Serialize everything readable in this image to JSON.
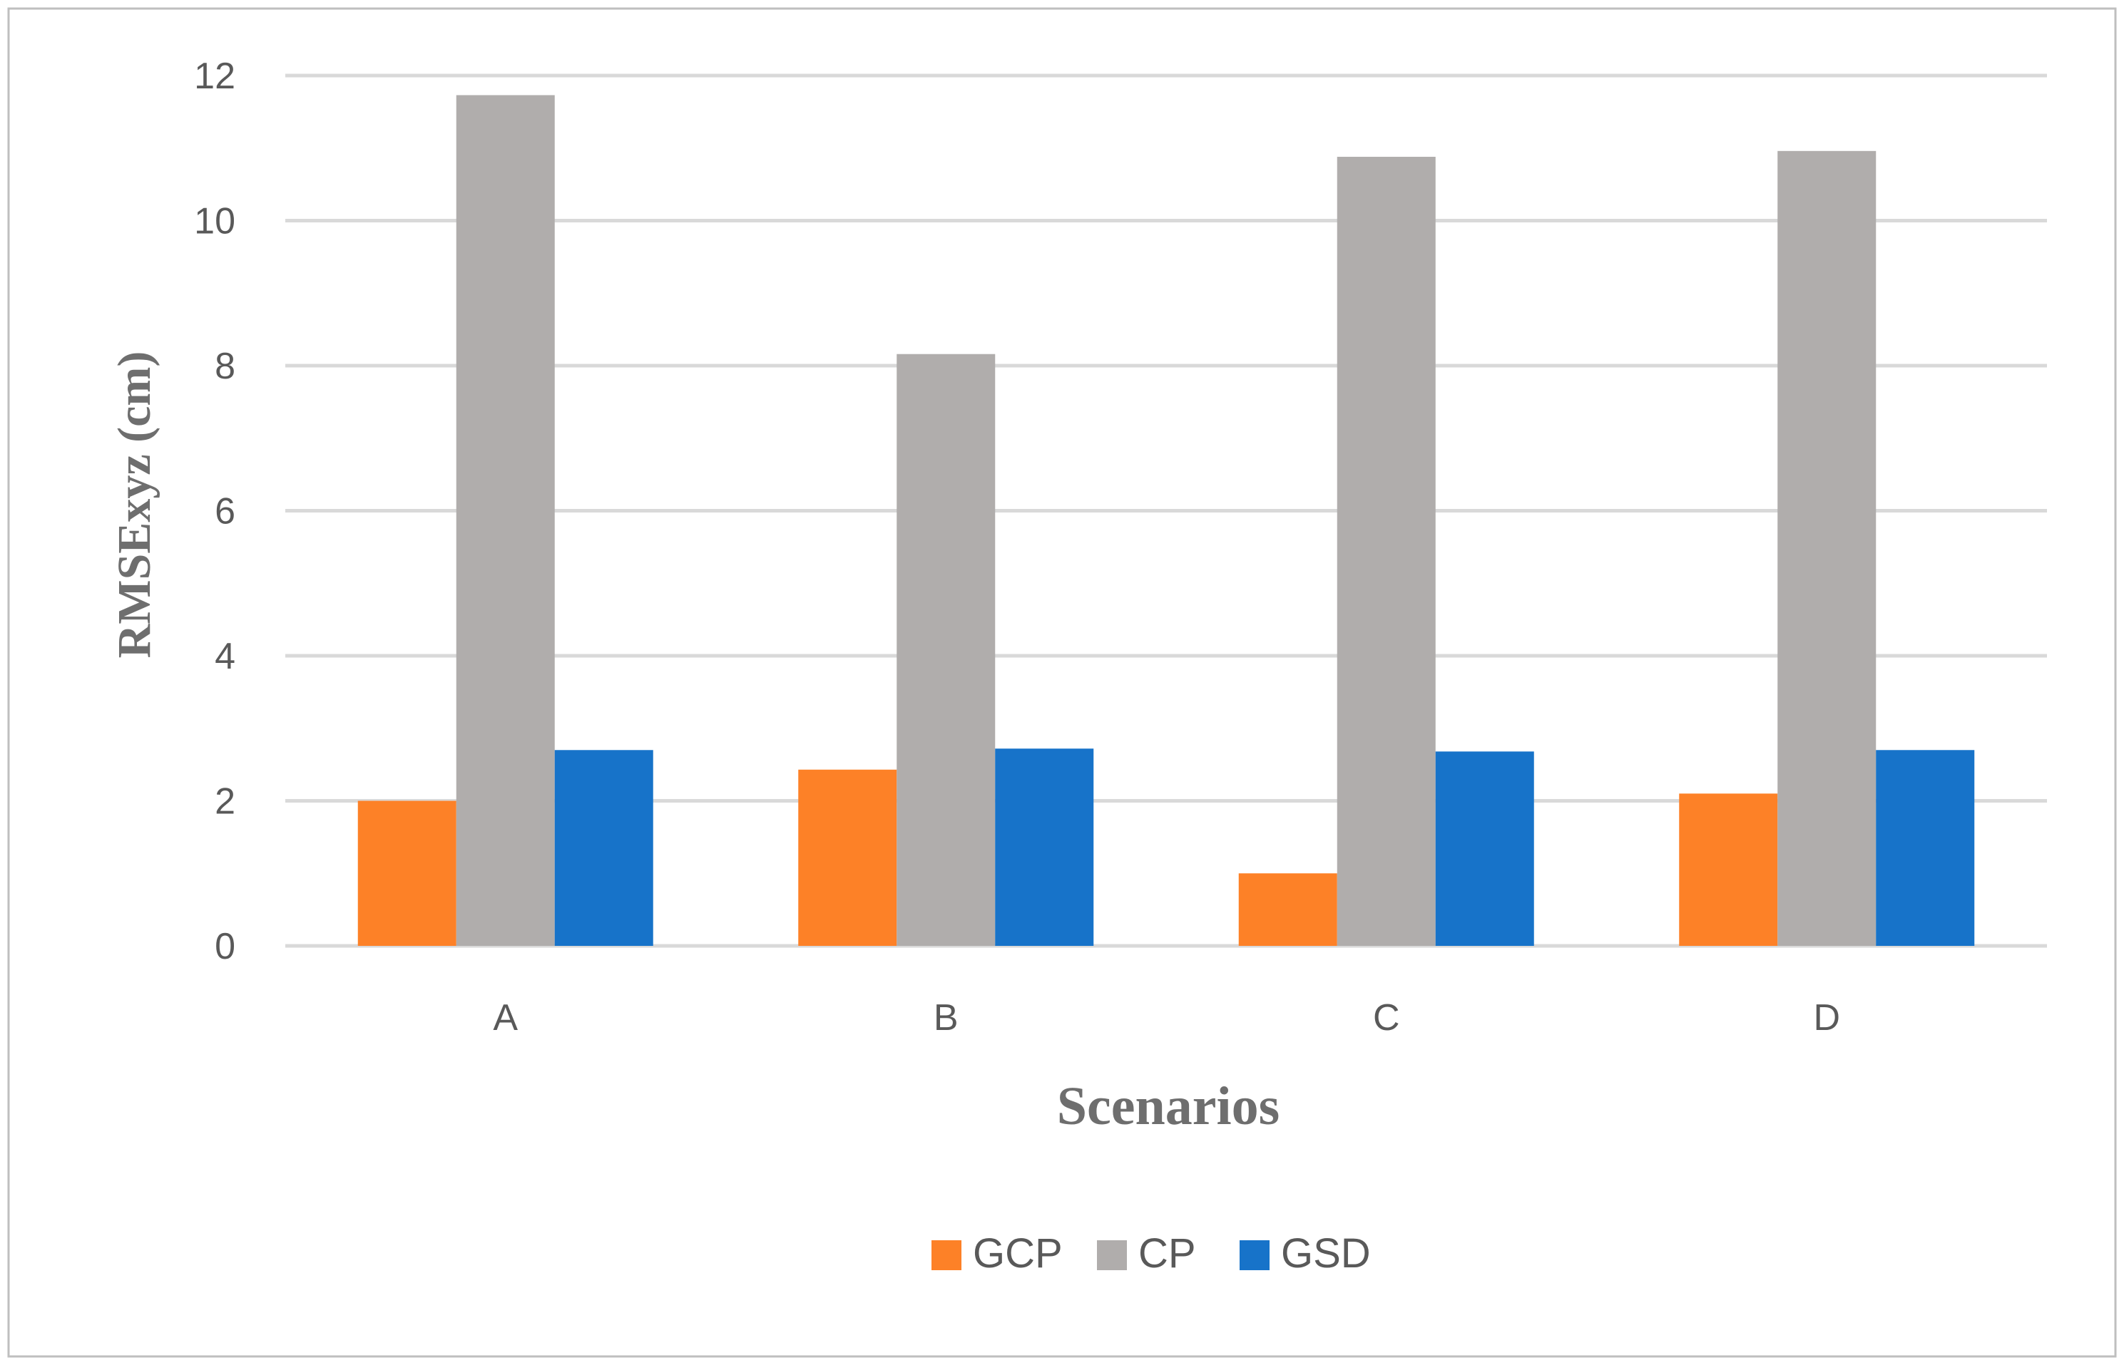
{
  "chart_data": {
    "type": "bar",
    "title": "",
    "xlabel": "Scenarios",
    "ylabel": "RMSExyz (cm)",
    "categories": [
      "A",
      "B",
      "C",
      "D"
    ],
    "series": [
      {
        "name": "GCP",
        "color": "#fd8127",
        "values": [
          2.0,
          2.43,
          1.0,
          2.1
        ]
      },
      {
        "name": "CP",
        "color": "#b0adac",
        "values": [
          11.73,
          8.16,
          10.88,
          10.96
        ]
      },
      {
        "name": "GSD",
        "color": "#1773c9",
        "values": [
          2.7,
          2.72,
          2.68,
          2.7
        ]
      }
    ],
    "ylim": [
      0,
      12
    ],
    "yticks": [
      "0",
      "2",
      "4",
      "6",
      "8",
      "10",
      "12"
    ],
    "grid": true,
    "legend_position": "bottom-center",
    "gridline_color": "#d9d9d9",
    "border_color": "#bfbfbf"
  }
}
